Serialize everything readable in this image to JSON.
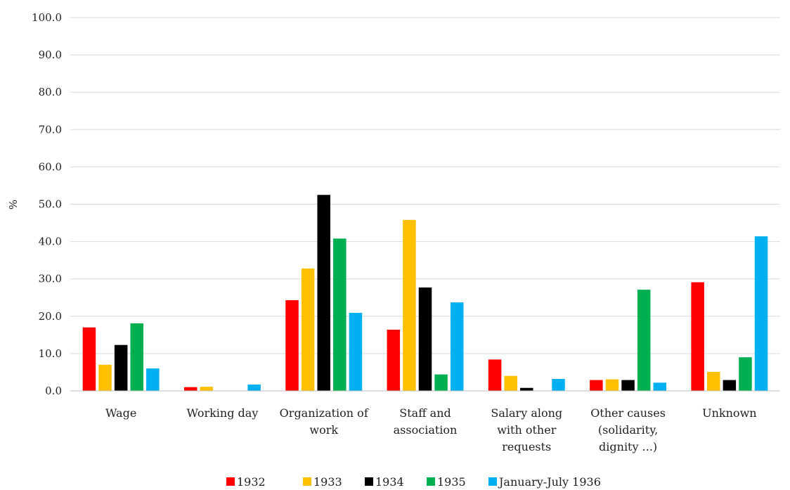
{
  "chart_data": {
    "type": "bar",
    "ylabel": "%",
    "ylim": [
      0,
      100
    ],
    "yticks": [
      "0.0",
      "10.0",
      "20.0",
      "30.0",
      "40.0",
      "50.0",
      "60.0",
      "70.0",
      "80.0",
      "90.0",
      "100.0"
    ],
    "grid": true,
    "legend_position": "bottom",
    "categories": [
      [
        "Wage"
      ],
      [
        "Working day"
      ],
      [
        "Organization of",
        "work"
      ],
      [
        "Staff and",
        "association"
      ],
      [
        "Salary along",
        "with other",
        "requests"
      ],
      [
        "Other causes",
        "(solidarity,",
        "dignity ...)"
      ],
      [
        "Unknown"
      ]
    ],
    "series": [
      {
        "name": "1932",
        "color": "#ff0000",
        "values": [
          17.0,
          1.0,
          24.3,
          16.4,
          8.4,
          2.9,
          29.1
        ]
      },
      {
        "name": "1933",
        "color": "#ffc000",
        "values": [
          7.0,
          1.1,
          32.8,
          45.8,
          4.0,
          3.1,
          5.1
        ]
      },
      {
        "name": "1934",
        "color": "#000000",
        "values": [
          12.3,
          0,
          52.5,
          27.7,
          0.8,
          2.9,
          2.9
        ]
      },
      {
        "name": "1935",
        "color": "#00b050",
        "values": [
          18.1,
          0,
          40.8,
          4.4,
          0,
          27.1,
          9.0
        ]
      },
      {
        "name": "January-July 1936",
        "color": "#00b0f0",
        "values": [
          6.0,
          1.7,
          20.9,
          23.7,
          3.2,
          2.2,
          41.4
        ]
      }
    ]
  }
}
